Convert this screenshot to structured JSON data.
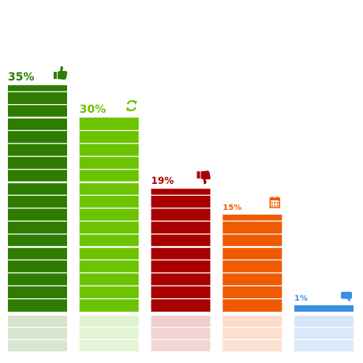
{
  "chart_data": {
    "type": "bar",
    "categories": [
      "",
      "",
      "",
      "",
      ""
    ],
    "values": [
      35,
      30,
      19,
      15,
      1
    ],
    "value_labels": [
      "35%",
      "30%",
      "19%",
      "15%",
      "1%"
    ],
    "icons": [
      "thumbs-up-icon",
      "refresh-icon",
      "thumbs-down-icon",
      "calendar-icon",
      "speech-bubble-icon"
    ],
    "colors": [
      "#2e7d00",
      "#6cc400",
      "#a80000",
      "#f05a00",
      "#3a8ee6"
    ],
    "reflection_colors": [
      "#d5e3cb",
      "#e0f3cf",
      "#f0cfcf",
      "#fddccb",
      "#d6e6f9"
    ],
    "title": "",
    "xlabel": "",
    "ylabel": "",
    "ylim": [
      0,
      35
    ],
    "grid": false,
    "legend": "none",
    "reflection": true
  }
}
